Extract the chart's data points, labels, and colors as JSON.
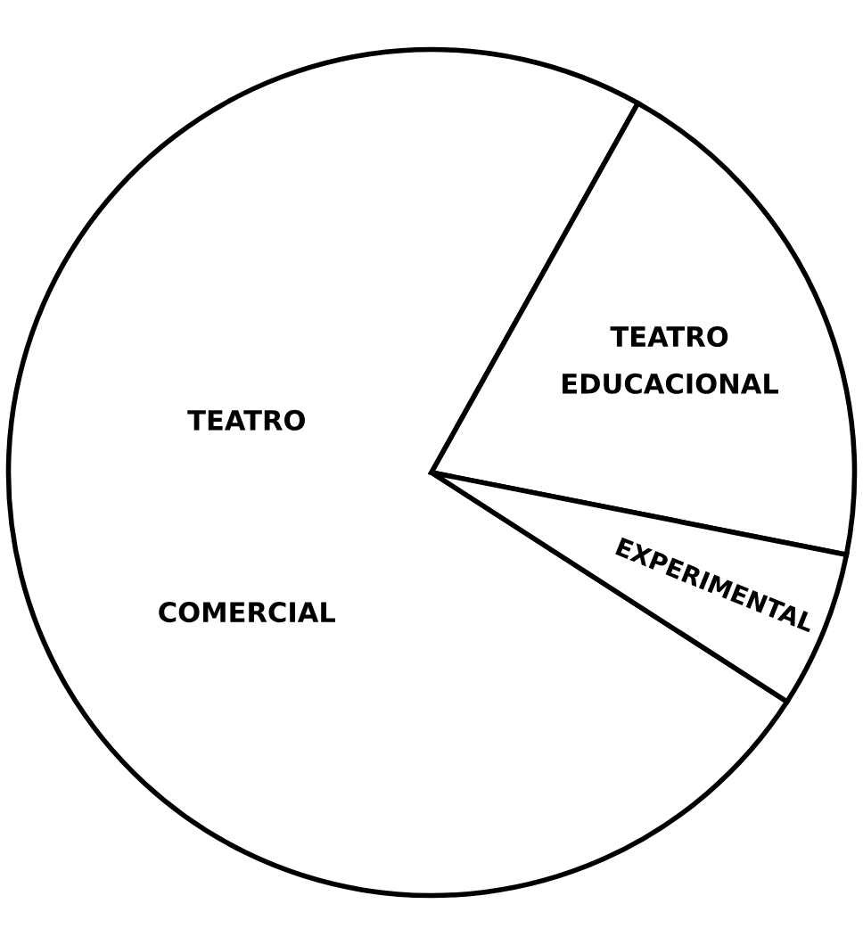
{
  "chart_data": {
    "type": "pie",
    "categories": [
      "TEATRO\nCOMERCIAL",
      "TEATRO\nEDUCACIONAL",
      "EXPERIMENTAL"
    ],
    "values": [
      74,
      20,
      6
    ],
    "colors": [
      "#ffffff",
      "#ffffff",
      "#ffffff"
    ]
  }
}
